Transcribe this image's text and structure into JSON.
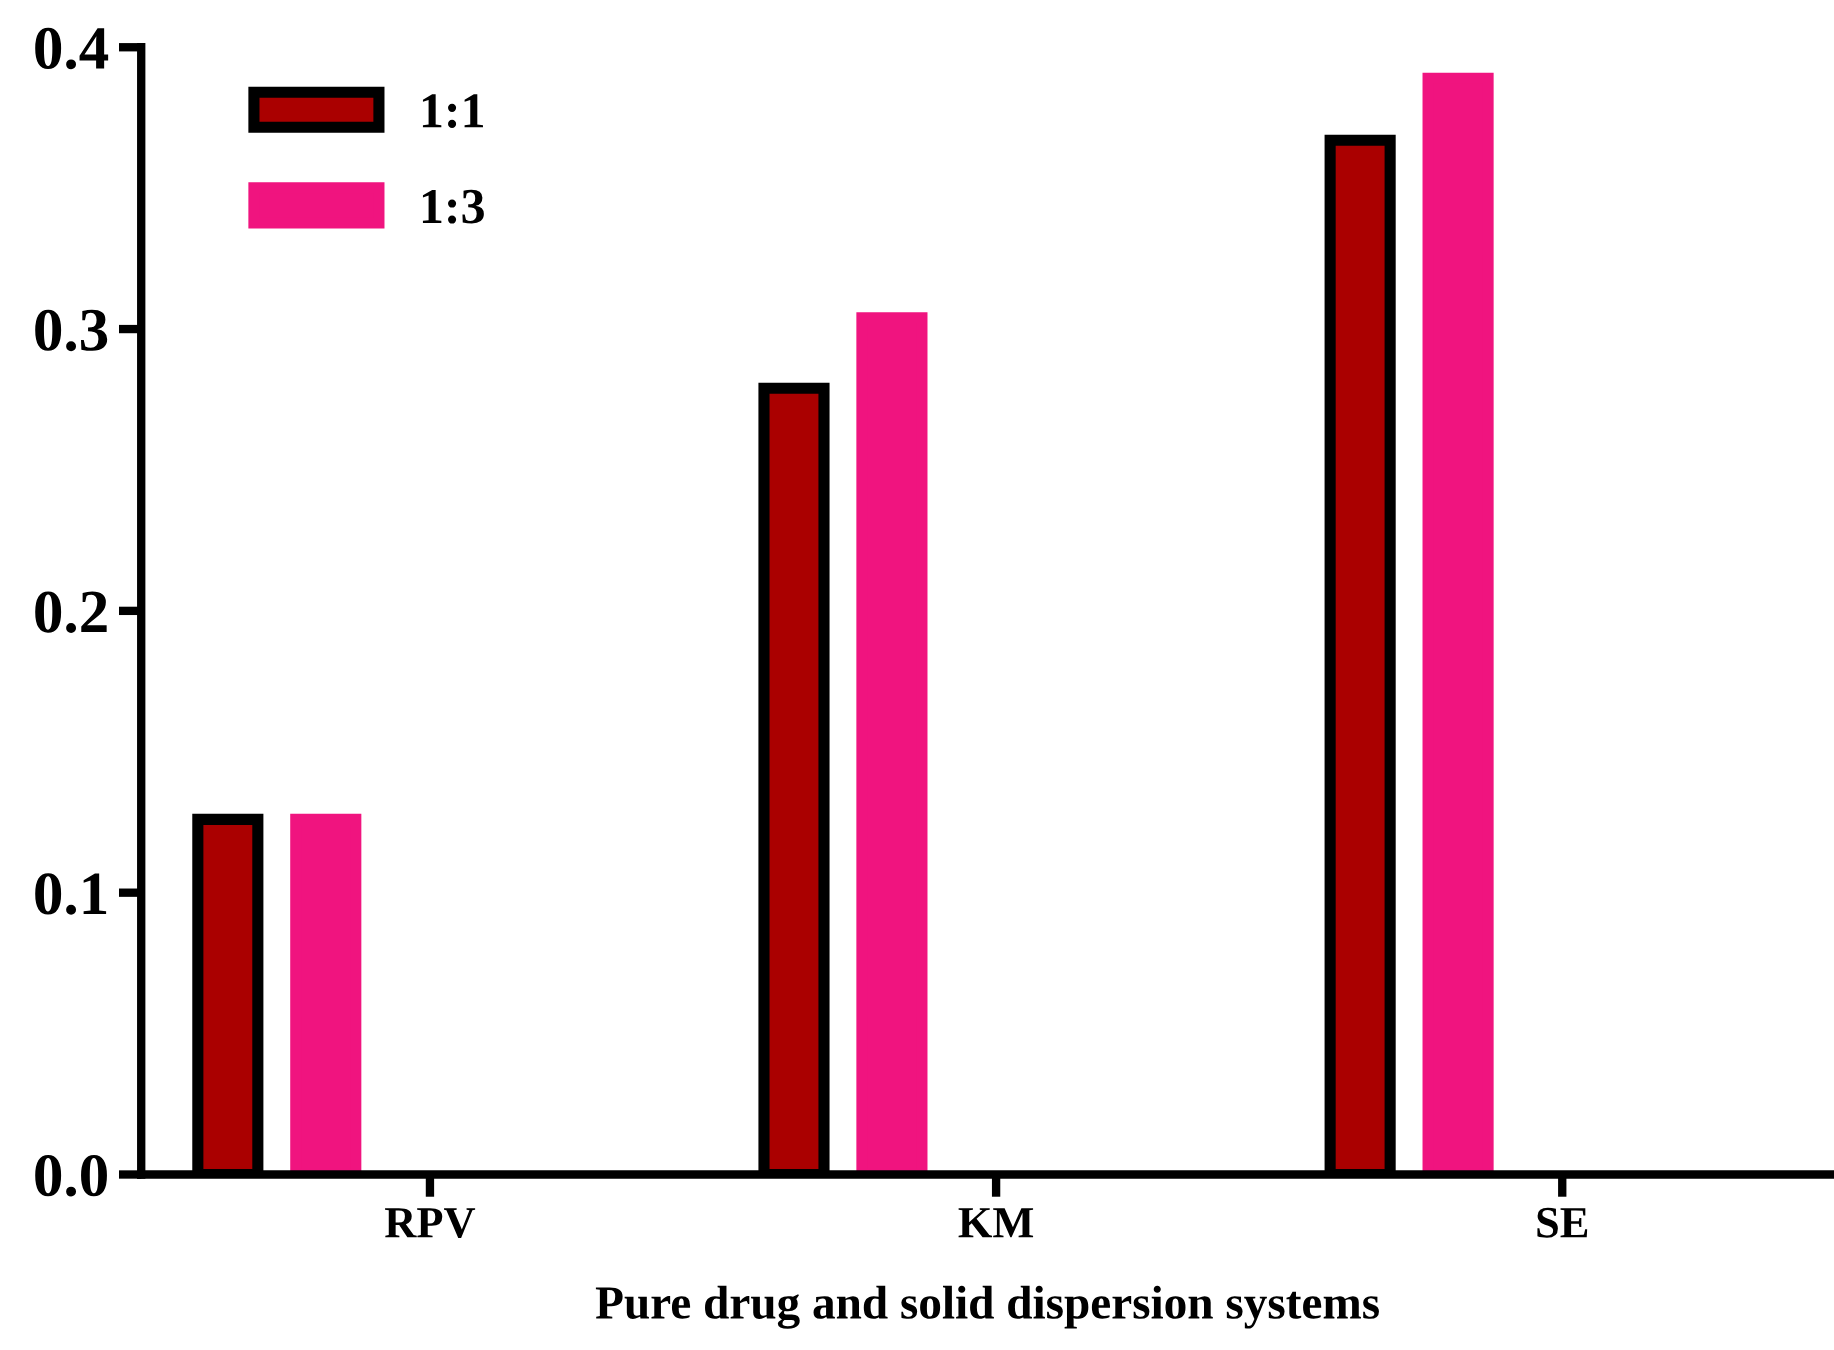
{
  "chart_data": {
    "type": "bar",
    "xlabel": "Pure drug and solid dispersion systems",
    "categories": [
      "RPV",
      "KM",
      "SE"
    ],
    "series": [
      {
        "name": "1:1",
        "color": "#aa0000",
        "values": [
          0.126,
          0.279,
          0.367
        ]
      },
      {
        "name": "1:3",
        "color": "#f0147f",
        "values": [
          0.126,
          0.304,
          0.389
        ]
      }
    ],
    "ylim": [
      0,
      0.4
    ],
    "yticks": [
      {
        "value": 0,
        "label": "0.0"
      },
      0.1,
      0.2,
      0.3,
      0.4
    ],
    "grid": false,
    "legend": "top left"
  }
}
